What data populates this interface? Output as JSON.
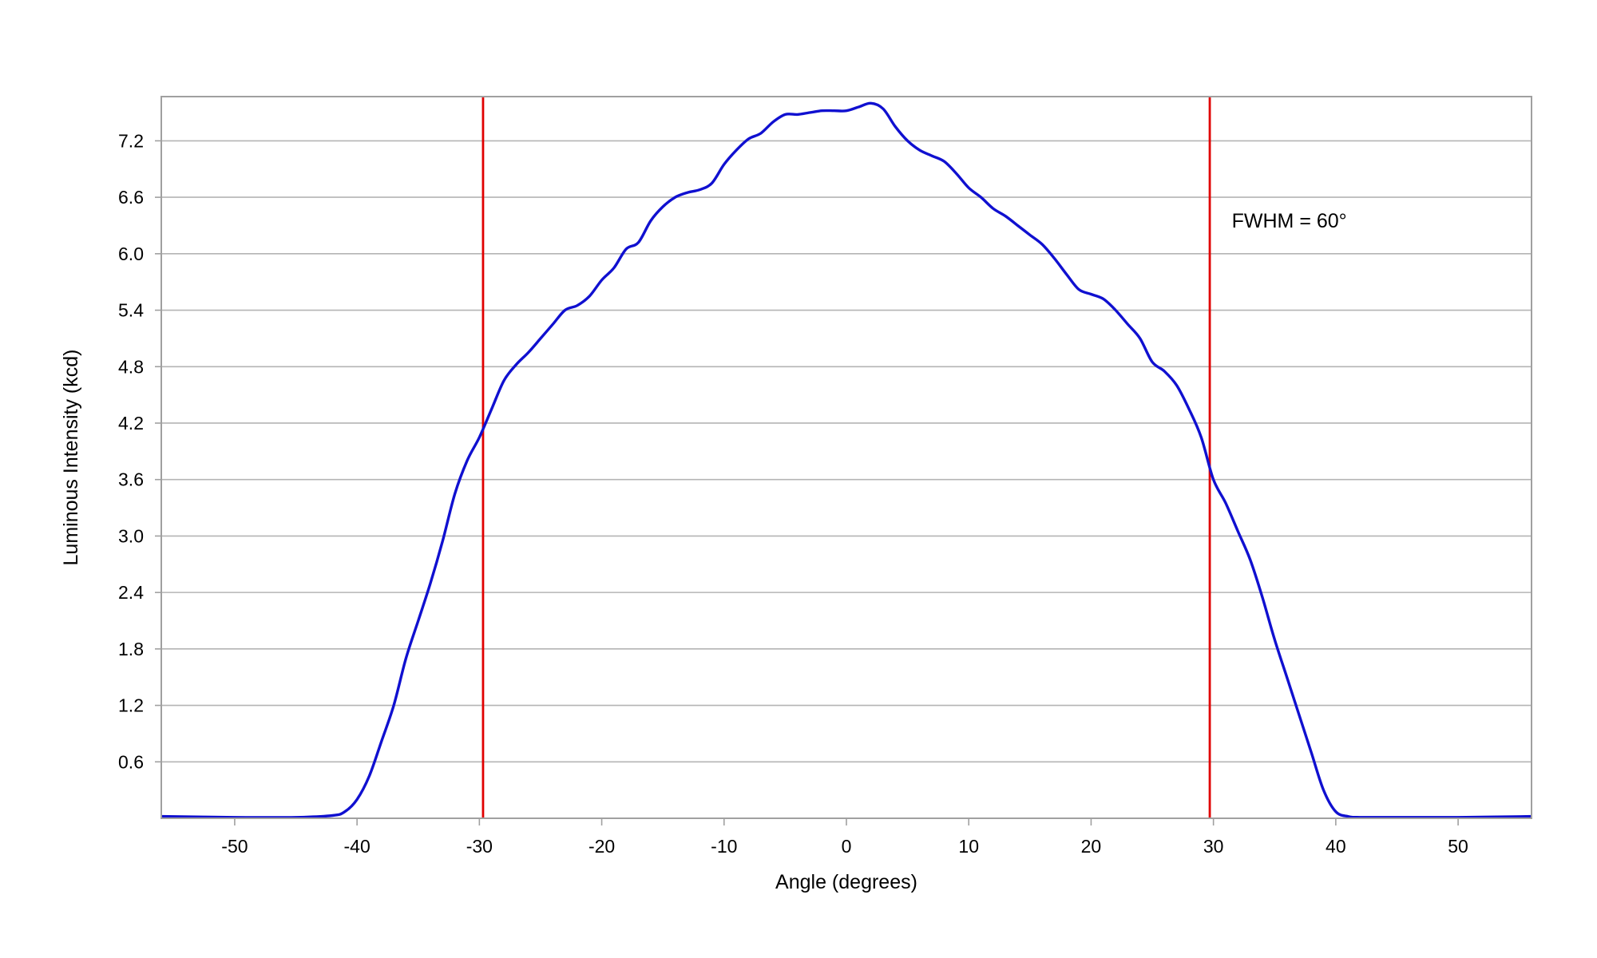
{
  "chart_data": {
    "type": "line",
    "title": "",
    "xlabel": "Angle (degrees)",
    "ylabel": "Luminous Intensity (kcd)",
    "xlim": [
      -56,
      56
    ],
    "ylim": [
      0,
      7.67
    ],
    "x_ticks": [
      -50,
      -40,
      -30,
      -20,
      -10,
      0,
      10,
      20,
      30,
      40,
      50
    ],
    "y_ticks": [
      0.6,
      1.2,
      1.8,
      2.4,
      3.0,
      3.6,
      4.2,
      4.8,
      5.4,
      6.0,
      6.6,
      7.2
    ],
    "x_tick_labels": [
      "-50",
      "-40",
      "-30",
      "-20",
      "-10",
      "0",
      "10",
      "20",
      "30",
      "40",
      "50"
    ],
    "y_tick_labels": [
      "0.6",
      "1.2",
      "1.8",
      "2.4",
      "3.0",
      "3.6",
      "4.2",
      "4.8",
      "5.4",
      "6.0",
      "6.6",
      "7.2"
    ],
    "grid": true,
    "series": [
      {
        "color": "#1010d0",
        "x": [
          -56,
          -50,
          -45,
          -42,
          -41,
          -40,
          -39,
          -38,
          -37,
          -36,
          -35,
          -34,
          -33,
          -32,
          -31,
          -30,
          -29,
          -28,
          -27,
          -26,
          -25,
          -24,
          -23,
          -22,
          -21,
          -20,
          -19,
          -18,
          -17,
          -16,
          -15,
          -14,
          -13,
          -12,
          -11,
          -10,
          -9,
          -8,
          -7,
          -6,
          -5,
          -4,
          -3,
          -2,
          -1,
          0,
          1,
          2,
          3,
          4,
          5,
          6,
          7,
          8,
          9,
          10,
          11,
          12,
          13,
          14,
          15,
          16,
          17,
          18,
          19,
          20,
          21,
          22,
          23,
          24,
          25,
          26,
          27,
          28,
          29,
          30,
          31,
          32,
          33,
          34,
          35,
          36,
          37,
          38,
          39,
          40,
          41,
          42,
          45,
          50,
          56
        ],
        "y": [
          0.02,
          0.01,
          0.01,
          0.03,
          0.07,
          0.2,
          0.45,
          0.82,
          1.2,
          1.7,
          2.1,
          2.5,
          2.95,
          3.45,
          3.8,
          4.05,
          4.35,
          4.65,
          4.82,
          4.95,
          5.1,
          5.25,
          5.4,
          5.45,
          5.55,
          5.72,
          5.85,
          6.05,
          6.12,
          6.35,
          6.5,
          6.6,
          6.65,
          6.68,
          6.75,
          6.95,
          7.1,
          7.22,
          7.28,
          7.4,
          7.48,
          7.48,
          7.5,
          7.52,
          7.52,
          7.52,
          7.56,
          7.6,
          7.54,
          7.35,
          7.2,
          7.1,
          7.04,
          6.98,
          6.85,
          6.7,
          6.6,
          6.48,
          6.4,
          6.3,
          6.2,
          6.1,
          5.95,
          5.78,
          5.62,
          5.57,
          5.52,
          5.4,
          5.25,
          5.1,
          4.85,
          4.75,
          4.6,
          4.35,
          4.05,
          3.6,
          3.35,
          3.05,
          2.75,
          2.35,
          1.9,
          1.5,
          1.1,
          0.7,
          0.3,
          0.07,
          0.02,
          0.01,
          0.01,
          0.01,
          0.02
        ]
      }
    ],
    "vertical_lines": [
      {
        "x": -29.7,
        "color": "#e00000"
      },
      {
        "x": 29.7,
        "color": "#e00000"
      }
    ],
    "annotations": [
      {
        "text": "FWHM = 60°",
        "x": 31.5,
        "y": 6.28
      }
    ]
  }
}
